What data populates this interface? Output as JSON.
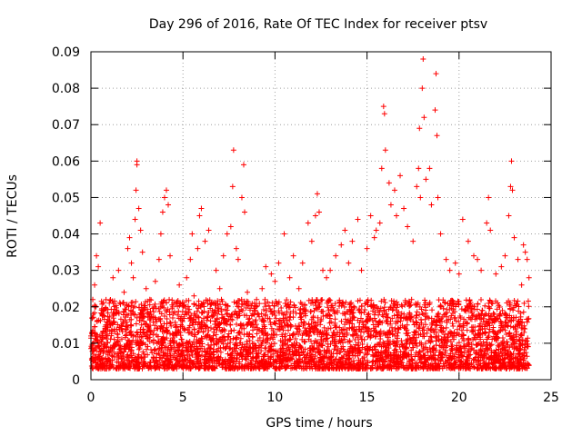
{
  "chart_data": {
    "type": "scatter",
    "title": "Day 296 of 2016, Rate Of TEC Index for receiver ptsv",
    "xlabel": "GPS time / hours",
    "ylabel": "ROTI / TECUs",
    "xlim": [
      0,
      25
    ],
    "ylim": [
      0,
      0.09
    ],
    "xticks": [
      0,
      5,
      10,
      15,
      20,
      25
    ],
    "xtick_labels": [
      "0",
      "5",
      "10",
      "15",
      "20",
      "25"
    ],
    "yticks": [
      0,
      0.01,
      0.02,
      0.03,
      0.04,
      0.05,
      0.06,
      0.07,
      0.08,
      0.09
    ],
    "ytick_labels": [
      "0",
      "0.01",
      "0.02",
      "0.03",
      "0.04",
      "0.05",
      "0.06",
      "0.07",
      "0.08",
      "0.09"
    ],
    "grid": true,
    "marker": "plus",
    "series": [
      {
        "name": "ROTI",
        "color": "#ff0000",
        "points": [
          [
            0.0,
            0.012
          ],
          [
            0.1,
            0.022
          ],
          [
            0.2,
            0.026
          ],
          [
            0.3,
            0.034
          ],
          [
            0.4,
            0.031
          ],
          [
            0.5,
            0.043
          ],
          [
            0.6,
            0.018
          ],
          [
            0.8,
            0.015
          ],
          [
            1.0,
            0.021
          ],
          [
            1.2,
            0.028
          ],
          [
            1.4,
            0.019
          ],
          [
            1.5,
            0.03
          ],
          [
            1.8,
            0.024
          ],
          [
            2.0,
            0.036
          ],
          [
            2.1,
            0.039
          ],
          [
            2.2,
            0.032
          ],
          [
            2.3,
            0.028
          ],
          [
            2.4,
            0.044
          ],
          [
            2.45,
            0.052
          ],
          [
            2.5,
            0.059
          ],
          [
            2.5,
            0.06
          ],
          [
            2.6,
            0.047
          ],
          [
            2.7,
            0.041
          ],
          [
            2.8,
            0.035
          ],
          [
            3.0,
            0.025
          ],
          [
            3.2,
            0.022
          ],
          [
            3.5,
            0.027
          ],
          [
            3.7,
            0.033
          ],
          [
            3.8,
            0.04
          ],
          [
            3.9,
            0.046
          ],
          [
            4.0,
            0.05
          ],
          [
            4.1,
            0.052
          ],
          [
            4.2,
            0.048
          ],
          [
            4.3,
            0.034
          ],
          [
            4.5,
            0.021
          ],
          [
            4.8,
            0.026
          ],
          [
            5.0,
            0.02
          ],
          [
            5.2,
            0.028
          ],
          [
            5.4,
            0.033
          ],
          [
            5.5,
            0.04
          ],
          [
            5.6,
            0.023
          ],
          [
            5.8,
            0.036
          ],
          [
            5.9,
            0.045
          ],
          [
            6.0,
            0.047
          ],
          [
            6.2,
            0.038
          ],
          [
            6.4,
            0.041
          ],
          [
            6.6,
            0.019
          ],
          [
            6.8,
            0.03
          ],
          [
            7.0,
            0.025
          ],
          [
            7.2,
            0.034
          ],
          [
            7.4,
            0.04
          ],
          [
            7.6,
            0.042
          ],
          [
            7.7,
            0.053
          ],
          [
            7.75,
            0.063
          ],
          [
            7.9,
            0.036
          ],
          [
            8.0,
            0.033
          ],
          [
            8.2,
            0.05
          ],
          [
            8.3,
            0.059
          ],
          [
            8.35,
            0.046
          ],
          [
            8.5,
            0.024
          ],
          [
            8.8,
            0.018
          ],
          [
            9.0,
            0.022
          ],
          [
            9.3,
            0.025
          ],
          [
            9.5,
            0.031
          ],
          [
            9.8,
            0.029
          ],
          [
            10.0,
            0.027
          ],
          [
            10.2,
            0.032
          ],
          [
            10.5,
            0.04
          ],
          [
            10.8,
            0.028
          ],
          [
            11.0,
            0.034
          ],
          [
            11.3,
            0.025
          ],
          [
            11.5,
            0.032
          ],
          [
            11.8,
            0.043
          ],
          [
            12.0,
            0.038
          ],
          [
            12.2,
            0.045
          ],
          [
            12.3,
            0.051
          ],
          [
            12.4,
            0.046
          ],
          [
            12.6,
            0.03
          ],
          [
            12.8,
            0.028
          ],
          [
            13.0,
            0.03
          ],
          [
            13.3,
            0.034
          ],
          [
            13.6,
            0.037
          ],
          [
            13.8,
            0.041
          ],
          [
            14.0,
            0.032
          ],
          [
            14.2,
            0.038
          ],
          [
            14.5,
            0.044
          ],
          [
            14.7,
            0.03
          ],
          [
            15.0,
            0.036
          ],
          [
            15.2,
            0.045
          ],
          [
            15.4,
            0.039
          ],
          [
            15.5,
            0.041
          ],
          [
            15.7,
            0.043
          ],
          [
            15.8,
            0.058
          ],
          [
            15.9,
            0.075
          ],
          [
            15.95,
            0.073
          ],
          [
            16.0,
            0.063
          ],
          [
            16.2,
            0.054
          ],
          [
            16.3,
            0.048
          ],
          [
            16.5,
            0.052
          ],
          [
            16.6,
            0.045
          ],
          [
            16.8,
            0.056
          ],
          [
            17.0,
            0.047
          ],
          [
            17.2,
            0.042
          ],
          [
            17.5,
            0.038
          ],
          [
            17.7,
            0.053
          ],
          [
            17.8,
            0.058
          ],
          [
            17.85,
            0.069
          ],
          [
            17.9,
            0.05
          ],
          [
            18.0,
            0.08
          ],
          [
            18.05,
            0.088
          ],
          [
            18.1,
            0.072
          ],
          [
            18.2,
            0.055
          ],
          [
            18.4,
            0.058
          ],
          [
            18.5,
            0.048
          ],
          [
            18.7,
            0.074
          ],
          [
            18.75,
            0.084
          ],
          [
            18.8,
            0.067
          ],
          [
            18.85,
            0.05
          ],
          [
            19.0,
            0.04
          ],
          [
            19.3,
            0.033
          ],
          [
            19.5,
            0.03
          ],
          [
            19.8,
            0.032
          ],
          [
            20.0,
            0.029
          ],
          [
            20.2,
            0.044
          ],
          [
            20.5,
            0.038
          ],
          [
            20.8,
            0.034
          ],
          [
            21.0,
            0.033
          ],
          [
            21.2,
            0.03
          ],
          [
            21.5,
            0.043
          ],
          [
            21.6,
            0.05
          ],
          [
            21.7,
            0.041
          ],
          [
            22.0,
            0.029
          ],
          [
            22.3,
            0.031
          ],
          [
            22.5,
            0.034
          ],
          [
            22.7,
            0.045
          ],
          [
            22.8,
            0.053
          ],
          [
            22.85,
            0.06
          ],
          [
            22.9,
            0.052
          ],
          [
            23.0,
            0.039
          ],
          [
            23.2,
            0.033
          ],
          [
            23.4,
            0.026
          ],
          [
            23.5,
            0.037
          ],
          [
            23.6,
            0.035
          ],
          [
            23.7,
            0.033
          ],
          [
            23.8,
            0.028
          ]
        ]
      }
    ],
    "dense_band": {
      "description_free": true,
      "x_range": [
        0,
        23.8
      ],
      "y_range": [
        0.003,
        0.022
      ],
      "count": 4000
    }
  }
}
